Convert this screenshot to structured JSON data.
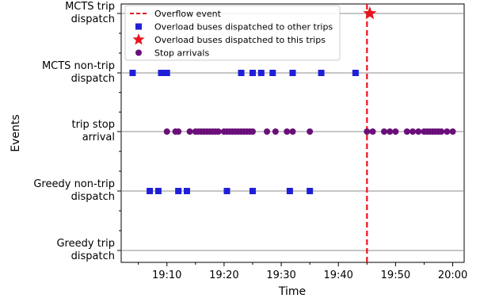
{
  "chart_data": {
    "type": "scatter",
    "xlabel": "Time",
    "ylabel": "Events",
    "x_ticks": [
      "19:10",
      "19:20",
      "19:30",
      "19:40",
      "19:50",
      "20:00"
    ],
    "xlim": [
      "19:02",
      "20:02"
    ],
    "y_categories": [
      "MCTS trip\ndispatch",
      "MCTS non-trip\ndispatch",
      "trip stop\narrival",
      "Greedy non-trip\ndispatch",
      "Greedy trip\ndispatch"
    ],
    "overflow_event": {
      "time": "19:45.0",
      "color": "#e8141c",
      "style": "dashed"
    },
    "series": [
      {
        "name": "Overload buses dispatched to other trips",
        "marker": "square",
        "color": "#1f1fd8",
        "points": [
          {
            "row": "MCTS non-trip\ndispatch",
            "times": [
              "19:04.0",
              "19:09.0",
              "19:10.0",
              "19:23.0",
              "19:25.0",
              "19:26.5",
              "19:28.5",
              "19:32.0",
              "19:37.0",
              "19:43.0"
            ]
          },
          {
            "row": "Greedy non-trip\ndispatch",
            "times": [
              "19:07.0",
              "19:08.5",
              "19:12.0",
              "19:13.5",
              "19:20.5",
              "19:25.0",
              "19:31.5",
              "19:35.0"
            ]
          }
        ]
      },
      {
        "name": "Overload buses dispatched to this trips",
        "marker": "star",
        "color": "#e8141c",
        "points": [
          {
            "row": "MCTS trip\ndispatch",
            "times": [
              "19:45.5"
            ]
          }
        ]
      },
      {
        "name": "Stop arrivals",
        "marker": "circle",
        "color": "#6a0f7a",
        "points": [
          {
            "row": "trip stop\narrival",
            "times": [
              "19:10.0",
              "19:11.5",
              "19:12.0",
              "19:14.0",
              "19:15.0",
              "19:15.5",
              "19:16.0",
              "19:16.5",
              "19:17.0",
              "19:17.5",
              "19:18.0",
              "19:18.5",
              "19:19.0",
              "19:20.0",
              "19:20.5",
              "19:21.0",
              "19:21.5",
              "19:22.0",
              "19:22.5",
              "19:23.0",
              "19:23.5",
              "19:24.0",
              "19:24.5",
              "19:25.0",
              "19:27.5",
              "19:29.0",
              "19:31.0",
              "19:32.0",
              "19:35.0",
              "19:45.0",
              "19:46.0",
              "19:48.0",
              "19:49.0",
              "19:50.0",
              "19:52.0",
              "19:53.0",
              "19:54.0",
              "19:55.0",
              "19:55.5",
              "19:56.0",
              "19:56.5",
              "19:57.0",
              "19:57.5",
              "19:58.0",
              "19:59.0",
              "20:00.0"
            ]
          }
        ]
      }
    ],
    "legend": {
      "position": "top-left",
      "entries": [
        {
          "label": "Overflow event",
          "kind": "dashed-line",
          "color": "#e8141c"
        },
        {
          "label": "Overload buses dispatched to other trips",
          "kind": "square",
          "color": "#1f1fd8"
        },
        {
          "label": "Overload buses dispatched to this trips",
          "kind": "star",
          "color": "#e8141c"
        },
        {
          "label": "Stop arrivals",
          "kind": "circle",
          "color": "#6a0f7a"
        }
      ]
    },
    "grid": "horizontal lines at category rows"
  }
}
